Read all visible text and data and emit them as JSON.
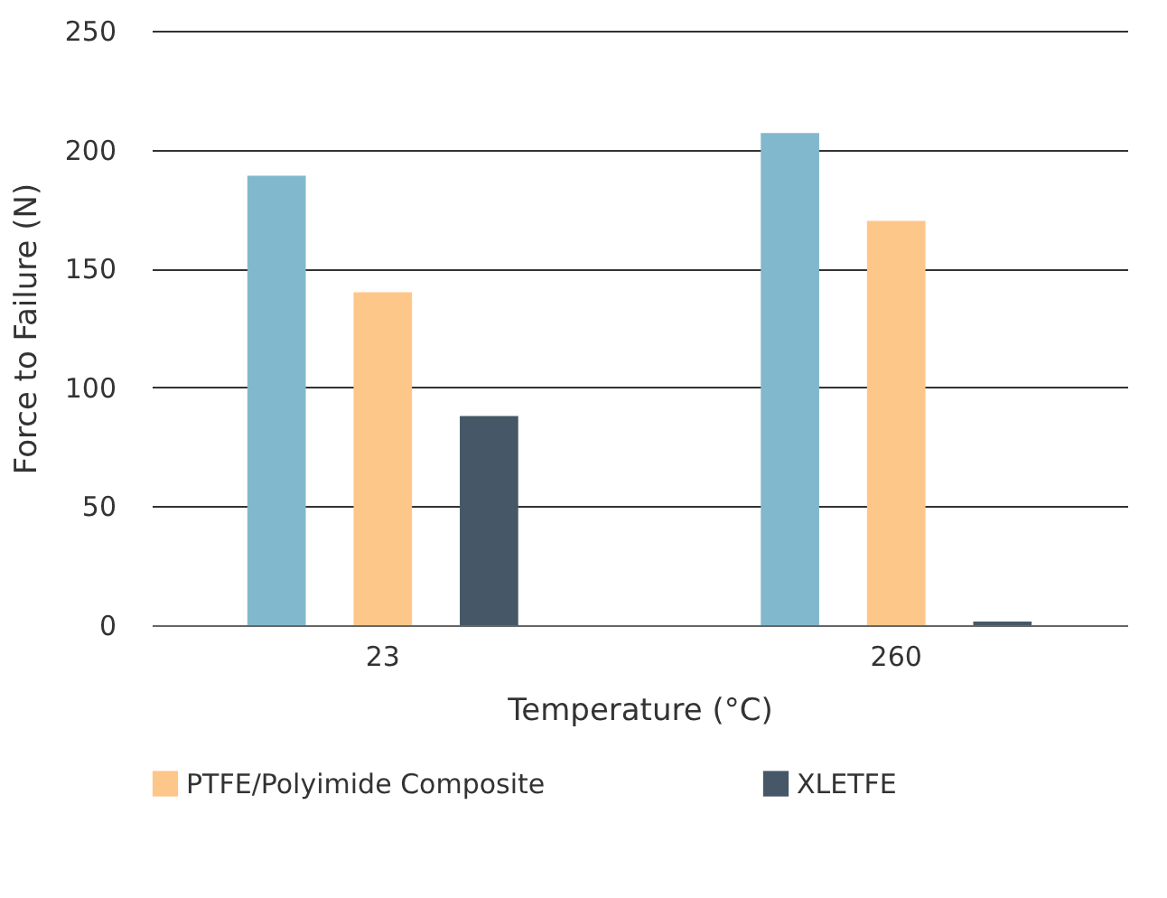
{
  "chart_data": {
    "type": "bar",
    "xlabel": "Temperature (°C)",
    "ylabel": "Force to Failure (N)",
    "categories": [
      "23",
      "260"
    ],
    "series": [
      {
        "color": "#82b8cd",
        "values": [
          189,
          207
        ]
      },
      {
        "name": "PTFE/Polyimide Composite",
        "color": "#fdc78a",
        "values": [
          140,
          170
        ]
      },
      {
        "name": "XLETFE",
        "color": "#465867",
        "values": [
          88,
          1.5
        ]
      }
    ],
    "ylim": [
      0,
      250
    ],
    "yticks": [
      0,
      50,
      100,
      150,
      200,
      250
    ],
    "grid": "y",
    "legend": "bottom"
  }
}
